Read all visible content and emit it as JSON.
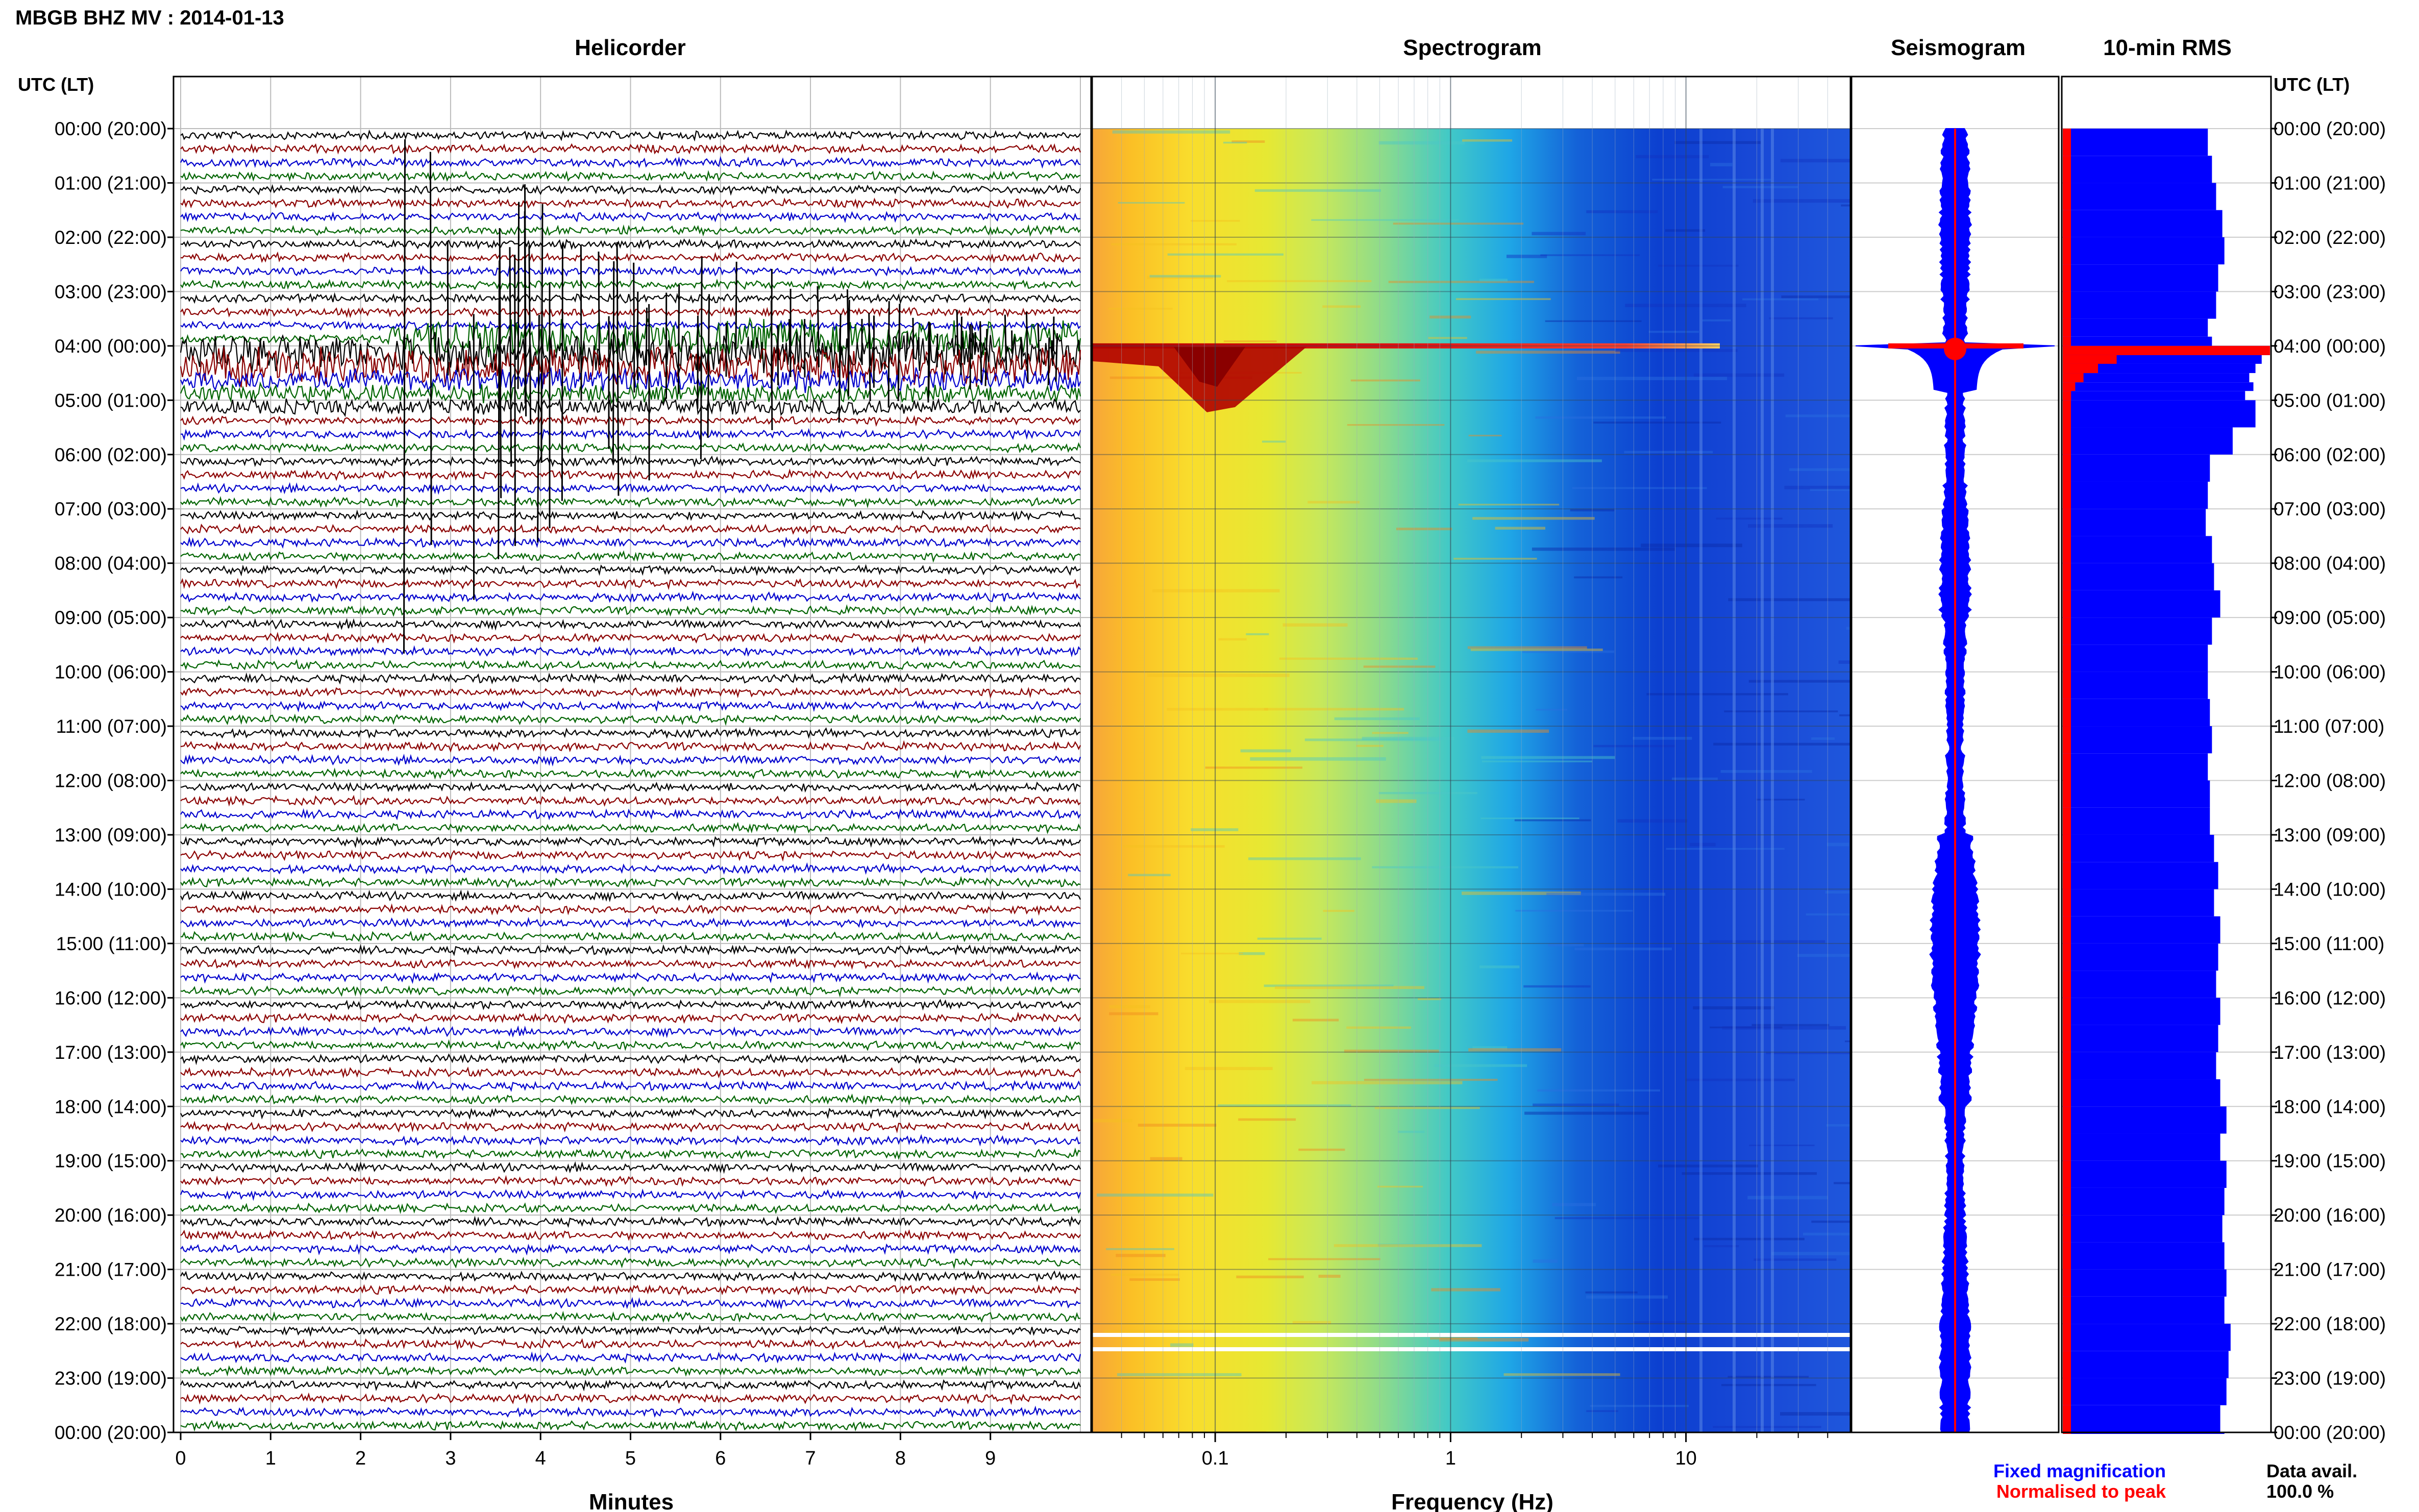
{
  "header": {
    "title": "MBGB BHZ MV : 2014-01-13"
  },
  "panels": {
    "helicorder": {
      "title": "Helicorder",
      "xlabel": "Minutes",
      "xticks": [
        "0",
        "1",
        "2",
        "3",
        "4",
        "5",
        "6",
        "7",
        "8",
        "9"
      ]
    },
    "spectrogram": {
      "title": "Spectrogram",
      "xlabel": "Frequency (Hz)",
      "xticks": [
        "0.1",
        "1",
        "10"
      ]
    },
    "seismogram": {
      "title": "Seismogram"
    },
    "rms": {
      "title": "10-min RMS"
    }
  },
  "yaxis": {
    "left_label": "UTC (LT)",
    "right_label": "UTC (LT)",
    "ticks": [
      "00:00 (20:00)",
      "01:00 (21:00)",
      "02:00 (22:00)",
      "03:00 (23:00)",
      "04:00 (00:00)",
      "05:00 (01:00)",
      "06:00 (02:00)",
      "07:00 (03:00)",
      "08:00 (04:00)",
      "09:00 (05:00)",
      "10:00 (06:00)",
      "11:00 (07:00)",
      "12:00 (08:00)",
      "13:00 (09:00)",
      "14:00 (10:00)",
      "15:00 (11:00)",
      "16:00 (12:00)",
      "17:00 (13:00)",
      "18:00 (14:00)",
      "19:00 (15:00)",
      "20:00 (16:00)",
      "21:00 (17:00)",
      "22:00 (18:00)",
      "23:00 (19:00)",
      "00:00 (20:00)"
    ]
  },
  "legend": {
    "fixed": "Fixed magnification",
    "normalised": "Normalised to peak",
    "fixed_color": "#0000ff",
    "normalised_color": "#ff0000"
  },
  "data_avail": {
    "label": "Data avail.",
    "value": "100.0 %"
  },
  "colors": {
    "trace_cycle": [
      "#000000",
      "#8b0000",
      "#0000cd",
      "#006400"
    ]
  },
  "chart_data": {
    "type": "heatmap",
    "event_hour_utc": 4.0,
    "helicorder": {
      "xlim": [
        0,
        10
      ],
      "lines_per_hour": 4,
      "hours": 24
    },
    "spectrogram": {
      "xscale": "log",
      "xlim": [
        0.03,
        50
      ]
    },
    "rms_10min": {
      "hours": [
        0,
        0.5,
        1,
        1.5,
        2,
        2.5,
        3,
        3.5,
        3.83,
        4.0,
        4.17,
        4.33,
        4.5,
        4.67,
        4.83,
        5,
        5.5,
        6,
        6.5,
        7,
        7.5,
        8,
        8.5,
        9,
        9.5,
        10,
        10.5,
        11,
        11.5,
        12,
        12.5,
        13,
        13.5,
        14,
        14.5,
        15,
        15.5,
        16,
        16.5,
        17,
        17.5,
        18,
        18.5,
        19,
        19.5,
        20,
        20.5,
        21,
        21.5,
        22,
        22.5,
        23,
        23.5,
        24
      ],
      "fixed": [
        0.7,
        0.72,
        0.74,
        0.77,
        0.78,
        0.75,
        0.74,
        0.7,
        0.72,
        1.0,
        0.96,
        0.93,
        0.9,
        0.92,
        0.88,
        0.93,
        0.82,
        0.71,
        0.7,
        0.69,
        0.72,
        0.73,
        0.76,
        0.72,
        0.7,
        0.7,
        0.71,
        0.72,
        0.7,
        0.71,
        0.71,
        0.73,
        0.75,
        0.73,
        0.76,
        0.75,
        0.74,
        0.76,
        0.75,
        0.74,
        0.76,
        0.79,
        0.76,
        0.79,
        0.78,
        0.77,
        0.78,
        0.79,
        0.78,
        0.81,
        0.8,
        0.79,
        0.76,
        0.78
      ],
      "normalised": [
        0.02,
        0.02,
        0.02,
        0.02,
        0.02,
        0.02,
        0.02,
        0.02,
        0.02,
        1.0,
        0.26,
        0.17,
        0.1,
        0.06,
        0.04,
        0.03,
        0.02,
        0.02,
        0.02,
        0.02,
        0.02,
        0.02,
        0.02,
        0.02,
        0.02,
        0.02,
        0.02,
        0.02,
        0.02,
        0.02,
        0.02,
        0.02,
        0.02,
        0.02,
        0.02,
        0.02,
        0.02,
        0.02,
        0.02,
        0.02,
        0.02,
        0.02,
        0.02,
        0.02,
        0.02,
        0.02,
        0.02,
        0.02,
        0.02,
        0.02,
        0.02,
        0.02,
        0.02,
        0.02
      ]
    }
  }
}
